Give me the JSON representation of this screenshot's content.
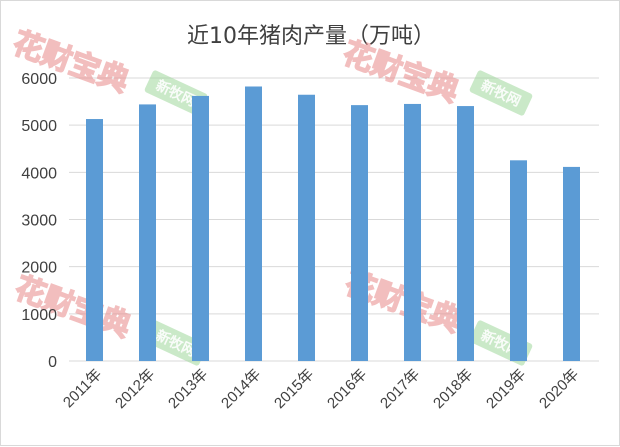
{
  "chart_data": {
    "type": "bar",
    "title": "近10年猪肉产量（万吨）",
    "categories": [
      "2011年",
      "2012年",
      "2013年",
      "2014年",
      "2015年",
      "2016年",
      "2017年",
      "2018年",
      "2019年",
      "2020年"
    ],
    "values": [
      5130,
      5440,
      5620,
      5820,
      5645,
      5425,
      5450,
      5405,
      4255,
      4115
    ],
    "yticks": [
      "0",
      "1000",
      "2000",
      "3000",
      "4000",
      "5000",
      "6000"
    ],
    "ylim": [
      0,
      6000
    ],
    "grid": true,
    "bar_color": "#5b9bd5"
  },
  "watermarks": {
    "red_text": "花财宝典",
    "green_text": "新牧网"
  }
}
